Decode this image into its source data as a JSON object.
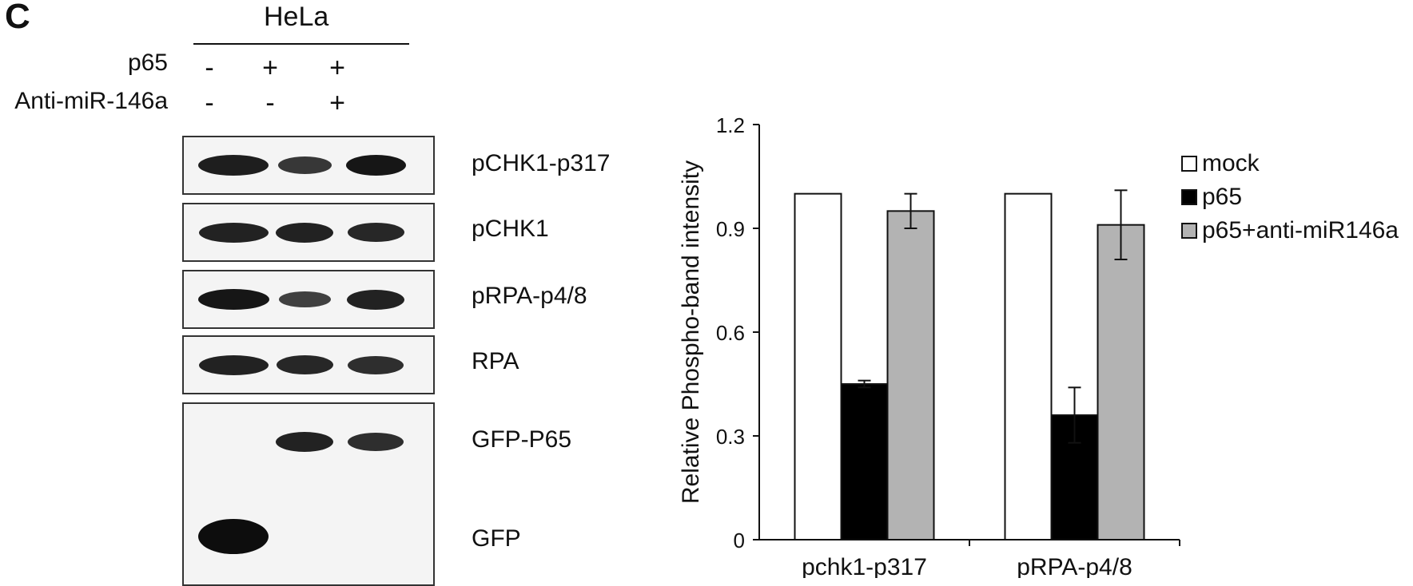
{
  "figure": {
    "panel_letter": "C",
    "cell_line": "HeLa",
    "conditions": [
      {
        "label": "p65",
        "signs": [
          "-",
          "+",
          "+"
        ]
      },
      {
        "label": "Anti-miR-146a",
        "signs": [
          "-",
          "-",
          "+"
        ]
      }
    ],
    "blots": [
      {
        "label": "pCHK1-p317",
        "bands": [
          0.85,
          0.6,
          0.9
        ]
      },
      {
        "label": "pCHK1",
        "bands": [
          0.8,
          0.8,
          0.75
        ]
      },
      {
        "label": "pRPA-p4/8",
        "bands": [
          0.9,
          0.5,
          0.8
        ]
      },
      {
        "label": "RPA",
        "bands": [
          0.8,
          0.75,
          0.7
        ]
      },
      {
        "label": "GFP-P65",
        "bands": [
          0,
          0.8,
          0.7
        ]
      },
      {
        "label": "GFP",
        "bands": [
          1.0,
          0,
          0
        ]
      }
    ]
  },
  "chart_data": {
    "type": "bar",
    "ylabel": "Relative Phospho-band intensity",
    "xlabel": "",
    "ylim": [
      0,
      1.2
    ],
    "yticks": [
      "0",
      "0.3",
      "0.6",
      "0.9",
      "1.2"
    ],
    "categories": [
      "pchk1-p317",
      "pRPA-p4/8"
    ],
    "series": [
      {
        "name": "mock",
        "values": [
          1.0,
          1.0
        ],
        "errors": [
          0,
          0
        ],
        "color": "#ffffff"
      },
      {
        "name": "p65",
        "values": [
          0.45,
          0.36
        ],
        "errors": [
          0.01,
          0.08
        ],
        "color": "#000000"
      },
      {
        "name": "p65+anti-miR146a",
        "values": [
          0.95,
          0.91
        ],
        "errors": [
          0.05,
          0.1
        ],
        "color": "#b3b3b3"
      }
    ],
    "grid": false,
    "legend": "right"
  }
}
